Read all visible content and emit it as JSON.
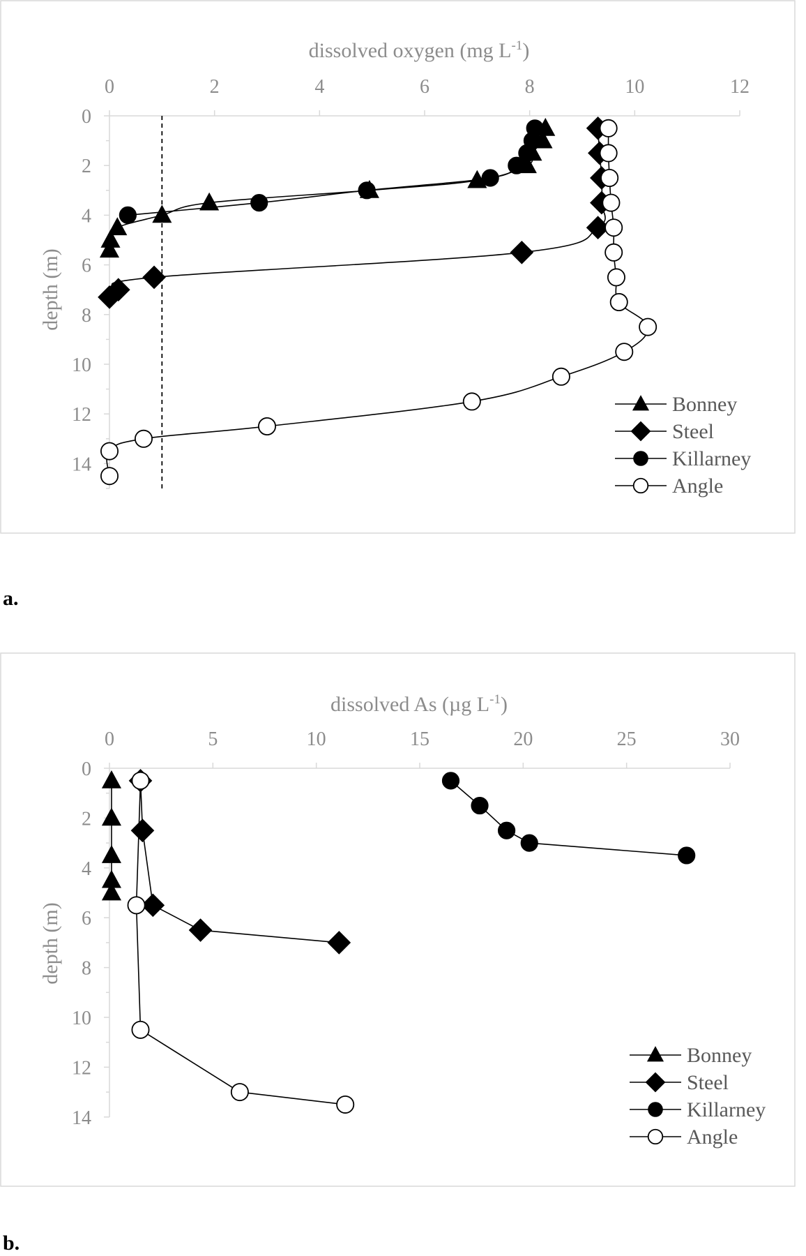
{
  "chart_data": [
    {
      "type": "line",
      "panel_label": "a.",
      "xlabel": "dissolved oxygen (mg L",
      "xlabel_sup": "-1",
      "xlabel_close": ")",
      "ylabel": "depth (m)",
      "xlim": [
        0,
        12
      ],
      "ylim": [
        0,
        15
      ],
      "x_axis_position": "top",
      "y_axis_inverted": true,
      "xticks": [
        "0",
        "2",
        "4",
        "6",
        "8",
        "10",
        "12"
      ],
      "yticks": [
        "0",
        "2",
        "4",
        "6",
        "8",
        "10",
        "12",
        "14"
      ],
      "reference_line_x": 1,
      "legend_position": "bottom-right",
      "series": [
        {
          "name": "Bonney",
          "marker": "triangle-filled",
          "points": [
            [
              8.3,
              0.5
            ],
            [
              8.25,
              1
            ],
            [
              8.05,
              1.5
            ],
            [
              7.95,
              2
            ],
            [
              7.0,
              2.6
            ],
            [
              4.95,
              3
            ],
            [
              1.9,
              3.5
            ],
            [
              1.0,
              4
            ],
            [
              0.15,
              4.5
            ],
            [
              0.02,
              5.0
            ],
            [
              0.0,
              5.4
            ]
          ]
        },
        {
          "name": "Steel",
          "marker": "diamond-filled",
          "points": [
            [
              9.3,
              0.5
            ],
            [
              9.33,
              1.5
            ],
            [
              9.37,
              2.5
            ],
            [
              9.37,
              3.5
            ],
            [
              9.3,
              4.5
            ],
            [
              7.85,
              5.5
            ],
            [
              0.85,
              6.5
            ],
            [
              0.17,
              7.0
            ],
            [
              0.0,
              7.3
            ]
          ]
        },
        {
          "name": "Killarney",
          "marker": "circle-filled",
          "points": [
            [
              8.1,
              0.5
            ],
            [
              8.05,
              1
            ],
            [
              7.95,
              1.5
            ],
            [
              7.75,
              2
            ],
            [
              7.25,
              2.5
            ],
            [
              4.9,
              3
            ],
            [
              2.85,
              3.5
            ],
            [
              0.35,
              4
            ]
          ]
        },
        {
          "name": "Angle",
          "marker": "circle-open",
          "points": [
            [
              9.5,
              0.5
            ],
            [
              9.5,
              1.5
            ],
            [
              9.52,
              2.5
            ],
            [
              9.55,
              3.5
            ],
            [
              9.6,
              4.5
            ],
            [
              9.6,
              5.5
            ],
            [
              9.65,
              6.5
            ],
            [
              9.7,
              7.5
            ],
            [
              10.25,
              8.5
            ],
            [
              9.8,
              9.5
            ],
            [
              8.6,
              10.5
            ],
            [
              6.9,
              11.5
            ],
            [
              3.0,
              12.5
            ],
            [
              0.65,
              13
            ],
            [
              0.0,
              13.5
            ],
            [
              0.0,
              14.5
            ]
          ]
        }
      ]
    },
    {
      "type": "line",
      "panel_label": "b.",
      "xlabel": "dissolved As (µg L",
      "xlabel_sup": "-1",
      "xlabel_close": ")",
      "ylabel": "depth (m)",
      "xlim": [
        0,
        30
      ],
      "ylim": [
        0,
        14
      ],
      "x_axis_position": "top",
      "y_axis_inverted": true,
      "xticks": [
        "0",
        "5",
        "10",
        "15",
        "20",
        "25",
        "30"
      ],
      "yticks": [
        "0",
        "2",
        "4",
        "6",
        "8",
        "10",
        "12",
        "14"
      ],
      "legend_position": "bottom-right",
      "series": [
        {
          "name": "Bonney",
          "marker": "triangle-filled",
          "points": [
            [
              0.1,
              0.5
            ],
            [
              0.1,
              2
            ],
            [
              0.1,
              3.5
            ],
            [
              0.1,
              4.5
            ],
            [
              0.1,
              5
            ]
          ]
        },
        {
          "name": "Steel",
          "marker": "diamond-filled",
          "points": [
            [
              1.5,
              0.5
            ],
            [
              1.6,
              2.5
            ],
            [
              2.1,
              5.5
            ],
            [
              4.4,
              6.5
            ],
            [
              11.1,
              7
            ]
          ]
        },
        {
          "name": "Killarney",
          "marker": "circle-filled",
          "points": [
            [
              16.5,
              0.5
            ],
            [
              17.9,
              1.5
            ],
            [
              19.2,
              2.5
            ],
            [
              20.3,
              3
            ],
            [
              27.9,
              3.5
            ]
          ]
        },
        {
          "name": "Angle",
          "marker": "circle-open",
          "points": [
            [
              1.5,
              0.5
            ],
            [
              1.3,
              5.5
            ],
            [
              1.5,
              10.5
            ],
            [
              6.3,
              13
            ],
            [
              11.4,
              13.5
            ]
          ]
        }
      ]
    }
  ]
}
